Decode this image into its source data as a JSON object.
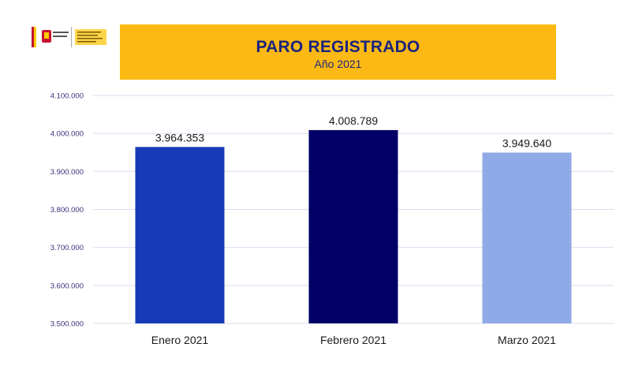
{
  "header": {
    "logo_label": "logo-gobierno-de-espana",
    "title": "PARO REGISTRADO",
    "subtitle": "Año 2021"
  },
  "colors": {
    "banner": "#fdb913",
    "title_text": "#1a237e",
    "tick_text": "#3a2a7a",
    "grid": "#dcdcf0"
  },
  "chart_data": {
    "type": "bar",
    "categories": [
      "Enero 2021",
      "Febrero 2021",
      "Marzo 2021"
    ],
    "values": [
      3964353,
      4008789,
      3949640
    ],
    "value_labels": [
      "3.964.353",
      "4.008.789",
      "3.949.640"
    ],
    "colors": [
      "#173bb8",
      "#000066",
      "#8faae6"
    ],
    "ylim": [
      3500000,
      4100000
    ],
    "yticks": [
      3500000,
      3600000,
      3700000,
      3800000,
      3900000,
      4000000,
      4100000
    ],
    "ytick_labels": [
      "3.500.000",
      "3.600.000",
      "3.700.000",
      "3.800.000",
      "3.900.000",
      "4.000.000",
      "4.100.000"
    ],
    "grid": true,
    "title": "PARO REGISTRADO",
    "subtitle": "Año 2021",
    "xlabel": "",
    "ylabel": ""
  }
}
